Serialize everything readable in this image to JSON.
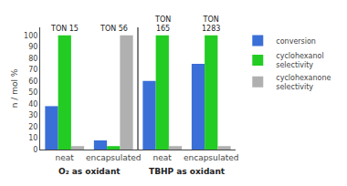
{
  "chart_data": {
    "type": "bar",
    "categories": [
      "neat",
      "encapsulated",
      "neat",
      "encapsulated"
    ],
    "category_groups": [
      {
        "label": "O₂ as oxidant",
        "categories": [
          0,
          1
        ]
      },
      {
        "label": "TBHP as oxidant",
        "categories": [
          2,
          3
        ]
      }
    ],
    "series": [
      {
        "name": "conversion",
        "color": "#3a6fd8",
        "values": [
          38,
          8,
          60,
          75
        ]
      },
      {
        "name": "cyclohexanol\nselectivity",
        "color": "#22cc22",
        "values": [
          100,
          3,
          100,
          100
        ]
      },
      {
        "name": "cyclohexanone\nselectivity",
        "color": "#b0b0b0",
        "values": [
          3,
          100,
          3,
          3
        ]
      }
    ],
    "ylabel": "n / mol %",
    "ylim": [
      0,
      107
    ],
    "yticks": [
      0,
      10,
      20,
      30,
      40,
      50,
      60,
      70,
      80,
      90,
      100
    ],
    "annotations": [
      {
        "text": "TON 15",
        "x": 0
      },
      {
        "text": "TON 56",
        "x": 1
      },
      {
        "text": "TON\n165",
        "x": 2
      },
      {
        "text": "TON\n1283",
        "x": 3
      }
    ],
    "legend": "upper right",
    "grid": false
  }
}
